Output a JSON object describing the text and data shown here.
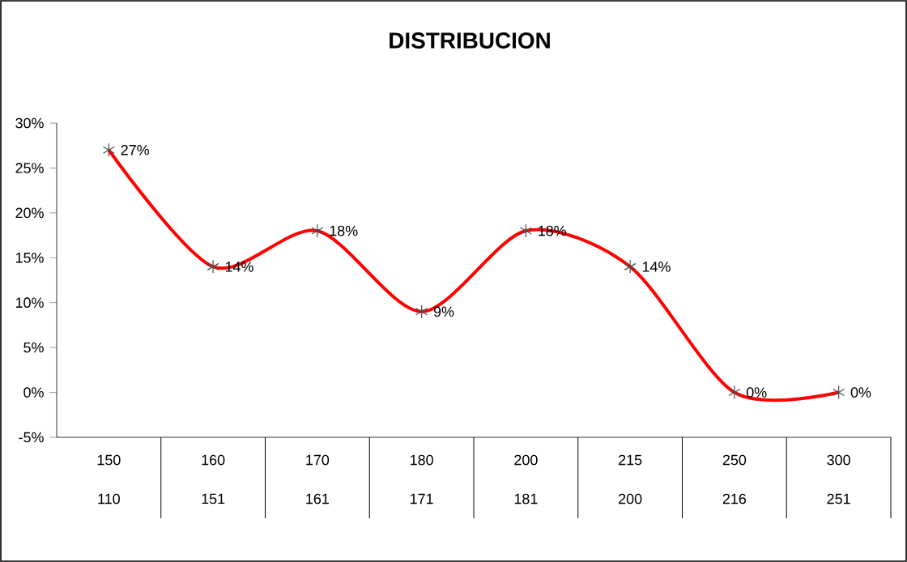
{
  "chart_data": {
    "type": "line",
    "title": "DISTRIBUCION",
    "categories": [
      "150",
      "160",
      "170",
      "180",
      "200",
      "215",
      "250",
      "300"
    ],
    "annotations": [
      "110",
      "151",
      "161",
      "171",
      "181",
      "200",
      "216",
      "251"
    ],
    "series": [
      {
        "color": "#ff0000",
        "values": [
          27,
          14,
          18,
          9,
          18,
          14,
          0,
          0
        ],
        "value_labels": [
          "27%",
          "14%",
          "18%",
          "9%",
          "18%",
          "14%",
          "0%",
          "0%"
        ]
      }
    ],
    "ylim": [
      -5,
      30
    ],
    "yticks": [
      {
        "value": -5,
        "label": "-5%"
      },
      {
        "value": 0,
        "label": "0%"
      },
      {
        "value": 5,
        "label": "5%"
      },
      {
        "value": 10,
        "label": "10%"
      },
      {
        "value": 15,
        "label": "15%"
      },
      {
        "value": 20,
        "label": "20%"
      },
      {
        "value": 25,
        "label": "25%"
      },
      {
        "value": 30,
        "label": "30%"
      }
    ],
    "marker": "cross",
    "line_style": "solid",
    "grid": false
  }
}
